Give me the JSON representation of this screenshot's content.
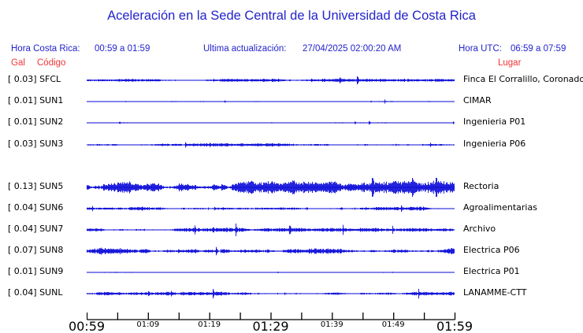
{
  "title": "Aceleración en la Sede Central de la Universidad de Costa Rica",
  "header": {
    "hora_cr_label": "Hora Costa Rica:",
    "hora_cr_value": "00:59 a 01:59",
    "actualizacion_label": "Ultima actualización:",
    "actualizacion_value": "27/04/2025 02:00:20 AM",
    "hora_utc_label": "Hora UTC:",
    "hora_utc_value": "06:59 a 07:59"
  },
  "columns": {
    "gal": "Gal",
    "codigo": "Código",
    "lugar": "Lugar"
  },
  "colors": {
    "text_blue": "#2323cd",
    "text_red": "#f03434",
    "trace_blue": "#0b0bd8",
    "axis_black": "#000000"
  },
  "chart_data": {
    "type": "line",
    "subtype": "seismogram-accelerogram",
    "title": "Aceleración en la Sede Central de la Universidad de Costa Rica",
    "x_range": [
      "00:59",
      "01:59"
    ],
    "x_tick_interval_minutes": 5,
    "x_ticks": [
      {
        "label": "00:59",
        "major": true
      },
      {
        "label": "",
        "major": false
      },
      {
        "label": "01:09",
        "major": false
      },
      {
        "label": "",
        "major": false
      },
      {
        "label": "01:19",
        "major": false
      },
      {
        "label": "",
        "major": false
      },
      {
        "label": "01:29",
        "major": true
      },
      {
        "label": "",
        "major": false
      },
      {
        "label": "01:39",
        "major": false
      },
      {
        "label": "",
        "major": false
      },
      {
        "label": "01:49",
        "major": false
      },
      {
        "label": "",
        "major": false
      },
      {
        "label": "01:59",
        "major": true
      }
    ],
    "stations": [
      {
        "gal": "0.03",
        "code": "SFCL",
        "location": "Finca El Corralillo, Coronado"
      },
      {
        "gal": "0.01",
        "code": "SUN1",
        "location": "CIMAR"
      },
      {
        "gal": "0.01",
        "code": "SUN2",
        "location": "Ingenieria P01"
      },
      {
        "gal": "0.03",
        "code": "SUN3",
        "location": "Ingenieria P06"
      },
      {
        "gal": "0.13",
        "code": "SUN5",
        "location": "Rectoria"
      },
      {
        "gal": "0.04",
        "code": "SUN6",
        "location": "Agroalimentarias"
      },
      {
        "gal": "0.04",
        "code": "SUN7",
        "location": "Archivo"
      },
      {
        "gal": "0.07",
        "code": "SUN8",
        "location": "Electrica P06"
      },
      {
        "gal": "0.01",
        "code": "SUN9",
        "location": "Electrica P01"
      },
      {
        "gal": "0.04",
        "code": "SUNL",
        "location": "LANAMME-CTT"
      }
    ]
  }
}
